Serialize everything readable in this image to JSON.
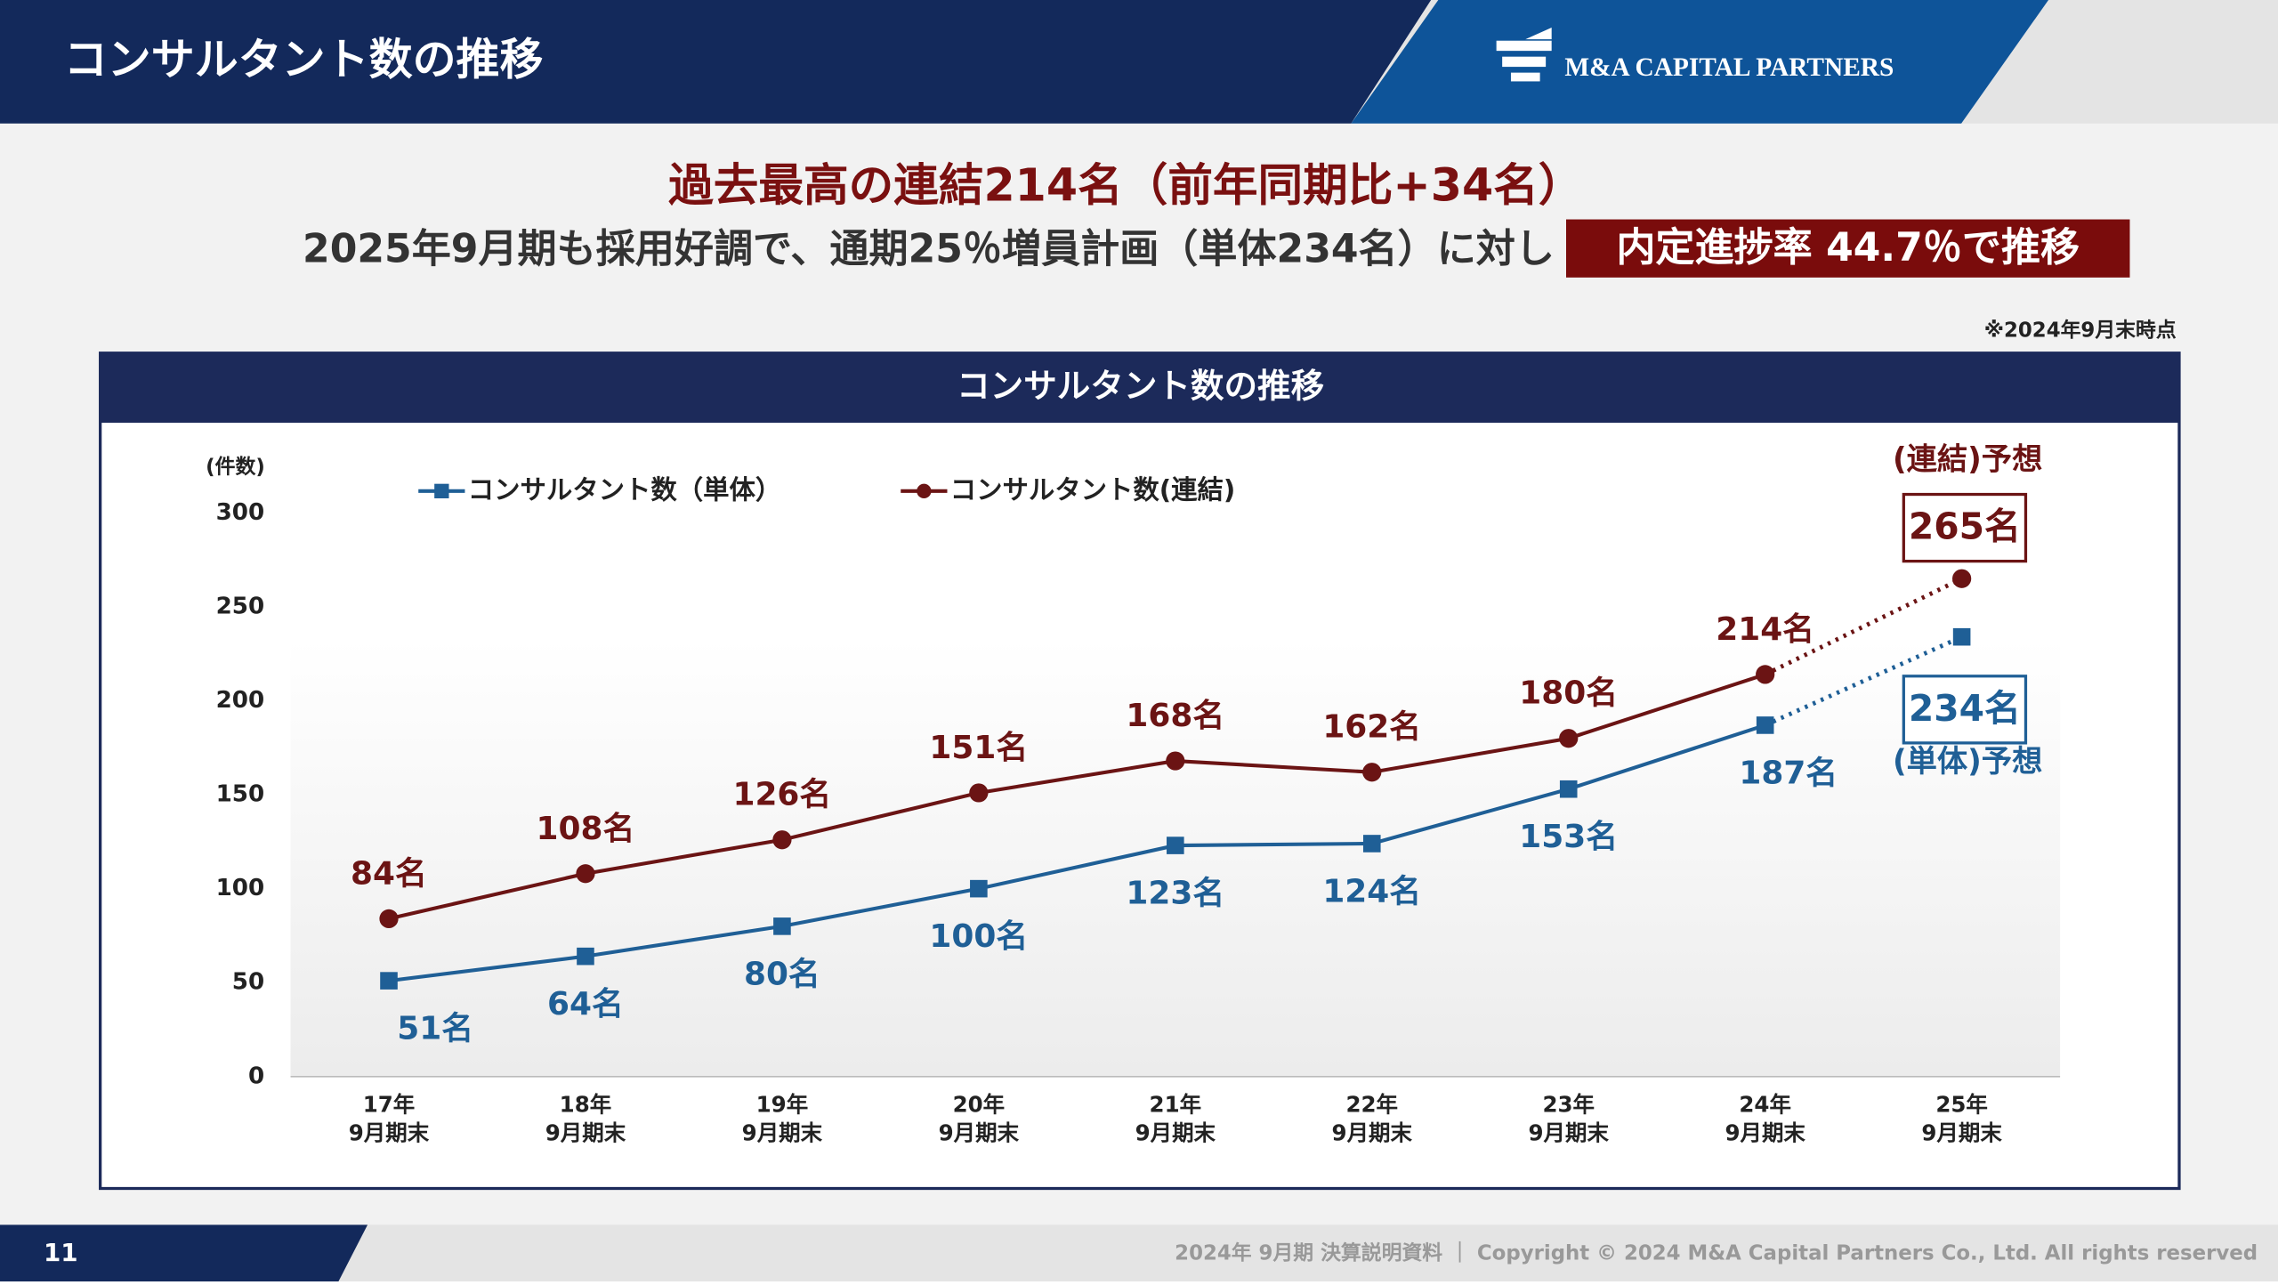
{
  "header": {
    "title": "コンサルタント数の推移",
    "logo": "M&A CAPITAL PARTNERS"
  },
  "headline": {
    "line1": "過去最高の連結214名（前年同期比+34名）",
    "line2": "2025年9月期も採用好調で、通期25％増員計画（単体234名）に対し",
    "highlight": "内定進捗率 44.7％で推移"
  },
  "note": "※2024年9月末時点",
  "chart_data": {
    "type": "line",
    "title": "コンサルタント数の推移",
    "y_label": "(件数)",
    "categories": [
      "17年\n9月期末",
      "18年\n9月期末",
      "19年\n9月期末",
      "20年\n9月期末",
      "21年\n9月期末",
      "22年\n9月期末",
      "23年\n9月期末",
      "24年\n9月期末",
      "25年\n9月期末"
    ],
    "ylim": [
      0,
      300
    ],
    "yticks": [
      0,
      50,
      100,
      150,
      200,
      250,
      300
    ],
    "forecast_start": 8,
    "series": [
      {
        "name": "コンサルタント数（単体）",
        "color": "#1f5f96",
        "marker": "square",
        "values": [
          51,
          64,
          80,
          100,
          123,
          124,
          153,
          187,
          234
        ],
        "value_labels": [
          "51名",
          "64名",
          "80名",
          "100名",
          "123名",
          "124名",
          "153名",
          "187名",
          "234名"
        ],
        "forecast_label": "(単体)予想"
      },
      {
        "name": "コンサルタント数(連結)",
        "color": "#6b1414",
        "marker": "circle",
        "values": [
          84,
          108,
          126,
          151,
          168,
          162,
          180,
          214,
          265
        ],
        "value_labels": [
          "84名",
          "108名",
          "126名",
          "151名",
          "168名",
          "162名",
          "180名",
          "214名",
          "265名"
        ],
        "forecast_label": "(連結)予想"
      }
    ]
  },
  "footer": {
    "page": "11",
    "text": "2024年 9月期 決算説明資料 ｜ Copyright © 2024 M&A Capital Partners Co., Ltd. All rights reserved"
  }
}
